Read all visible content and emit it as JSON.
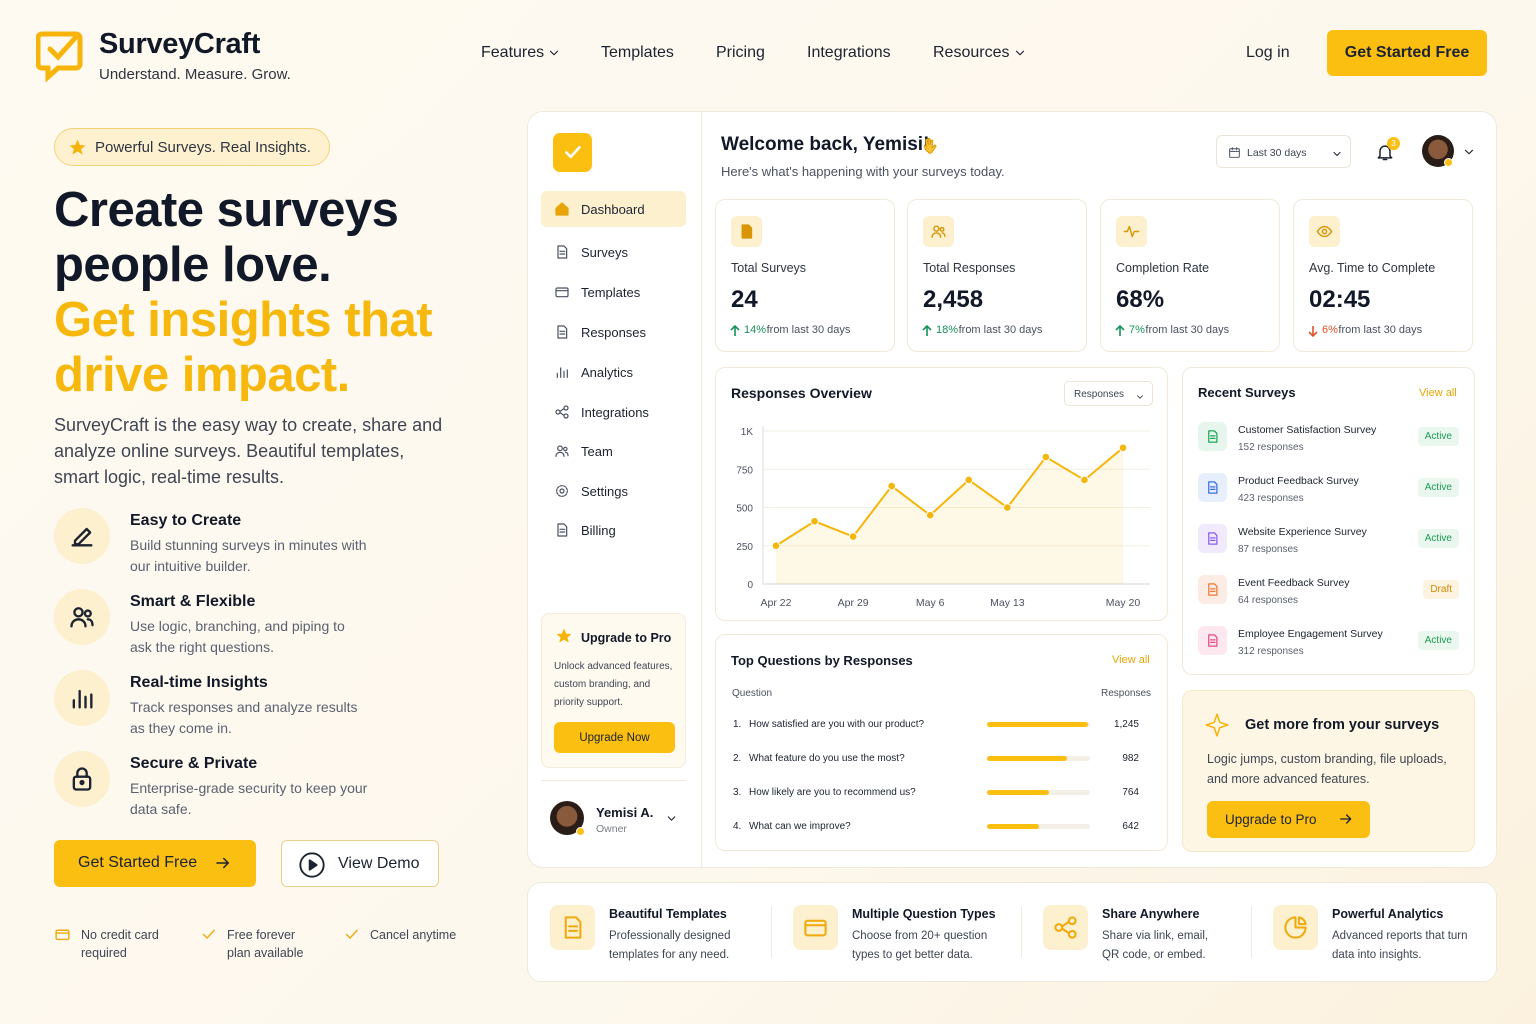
{
  "nav": {
    "brand": "SurveyCraft",
    "tagline": "Understand. Measure. Grow.",
    "links": [
      "Features",
      "Templates",
      "Pricing",
      "Integrations",
      "Resources"
    ],
    "login": "Log in",
    "cta": "Get Started Free"
  },
  "hero": {
    "badge": "Powerful Surveys. Real Insights.",
    "title": [
      "Create surveys",
      "people love."
    ],
    "highlight": [
      "Get insights that",
      "drive impact."
    ],
    "description": "SurveyCraft is the easy way to create, share and analyze online surveys. Beautiful templates, smart logic, real-time results.",
    "features": [
      {
        "title": "Easy to Create",
        "text": "Build stunning surveys in minutes with our intuitive builder."
      },
      {
        "title": "Smart & Flexible",
        "text": "Use logic, branching, and piping to ask the right questions."
      },
      {
        "title": "Real-time Insights",
        "text": "Track responses and analyze results as they come in."
      },
      {
        "title": "Secure & Private",
        "text": "Enterprise-grade security to keep your data safe."
      }
    ],
    "primary_button": "Get Started Free",
    "secondary_button": "View Demo",
    "assurances": [
      "No credit card required",
      "Free forever plan available",
      "Cancel anytime"
    ]
  },
  "sidebar": {
    "menu": [
      "Dashboard",
      "Surveys",
      "Templates",
      "Responses",
      "Analytics",
      "Integrations",
      "Team",
      "Settings",
      "Billing"
    ],
    "upgrade": {
      "title": "Upgrade to Pro",
      "text": "Unlock advanced features, custom branding, and priority support.",
      "button": "Upgrade Now"
    },
    "user": {
      "name": "Yemisi A.",
      "role": "Owner"
    }
  },
  "header": {
    "greeting": "Welcome back, Yemisi!",
    "subtitle": "Here's what's happening with your surveys today.",
    "date_range": "Last 30 days",
    "notifications": "3"
  },
  "stats": [
    {
      "label": "Total Surveys",
      "value": "24",
      "change": "14%",
      "change_text": "from last 30 days",
      "trend": "up"
    },
    {
      "label": "Total Responses",
      "value": "2,458",
      "change": "18%",
      "change_text": "from last 30 days",
      "trend": "up"
    },
    {
      "label": "Completion Rate",
      "value": "68%",
      "change": "7%",
      "change_text": "from last 30 days",
      "trend": "up"
    },
    {
      "label": "Avg. Time to Complete",
      "value": "02:45",
      "change": "6%",
      "change_text": "from last 30 days",
      "trend": "down"
    }
  ],
  "chart_data": {
    "type": "line",
    "title": "Responses Overview",
    "selector": "Responses",
    "categories": [
      "Apr 22",
      null,
      "Apr 29",
      null,
      "May 6",
      null,
      "May 13",
      null,
      null,
      "May 20"
    ],
    "values": [
      250,
      410,
      310,
      640,
      450,
      680,
      500,
      830,
      680,
      890
    ],
    "color": "#f5b60b",
    "ylim": [
      0,
      1000
    ],
    "yticks": [
      0,
      250,
      500,
      750,
      {
        "value": 1000,
        "label": "1K"
      }
    ],
    "area": true
  },
  "top_questions": {
    "title": "Top Questions by Responses",
    "view_all": "View all",
    "headers": [
      "Question",
      "Responses"
    ],
    "rows": [
      {
        "rank": "1.",
        "question": "How satisfied are you with our product?",
        "value": 1245,
        "value_label": "1,245"
      },
      {
        "rank": "2.",
        "question": "What feature do you use the most?",
        "value": 982
      },
      {
        "rank": "3.",
        "question": "How likely are you to recommend us?",
        "value": 764
      },
      {
        "rank": "4.",
        "question": "What can we improve?",
        "value": 642
      }
    ]
  },
  "recent_surveys": {
    "title": "Recent Surveys",
    "view_all": "View all",
    "items": [
      {
        "name": "Customer Satisfaction Survey",
        "responses": "152 responses",
        "status": "Active"
      },
      {
        "name": "Product Feedback Survey",
        "responses": "423 responses",
        "status": "Active"
      },
      {
        "name": "Website Experience Survey",
        "responses": "87 responses",
        "status": "Active"
      },
      {
        "name": "Event Feedback Survey",
        "responses": "64 responses",
        "status": "Draft"
      },
      {
        "name": "Employee Engagement Survey",
        "responses": "312 responses",
        "status": "Active"
      }
    ]
  },
  "promo": {
    "title": "Get more from your surveys",
    "text": "Logic jumps, custom branding, file uploads, and more advanced features.",
    "button": "Upgrade to Pro"
  },
  "highlights": [
    {
      "title": "Beautiful Templates",
      "text": "Professionally designed templates for any need."
    },
    {
      "title": "Multiple Question Types",
      "text": "Choose from 20+ question types to get better data."
    },
    {
      "title": "Share Anywhere",
      "text": "Share via link, email, QR code, or embed."
    },
    {
      "title": "Powerful Analytics",
      "text": "Advanced reports that turn data into insights."
    }
  ]
}
